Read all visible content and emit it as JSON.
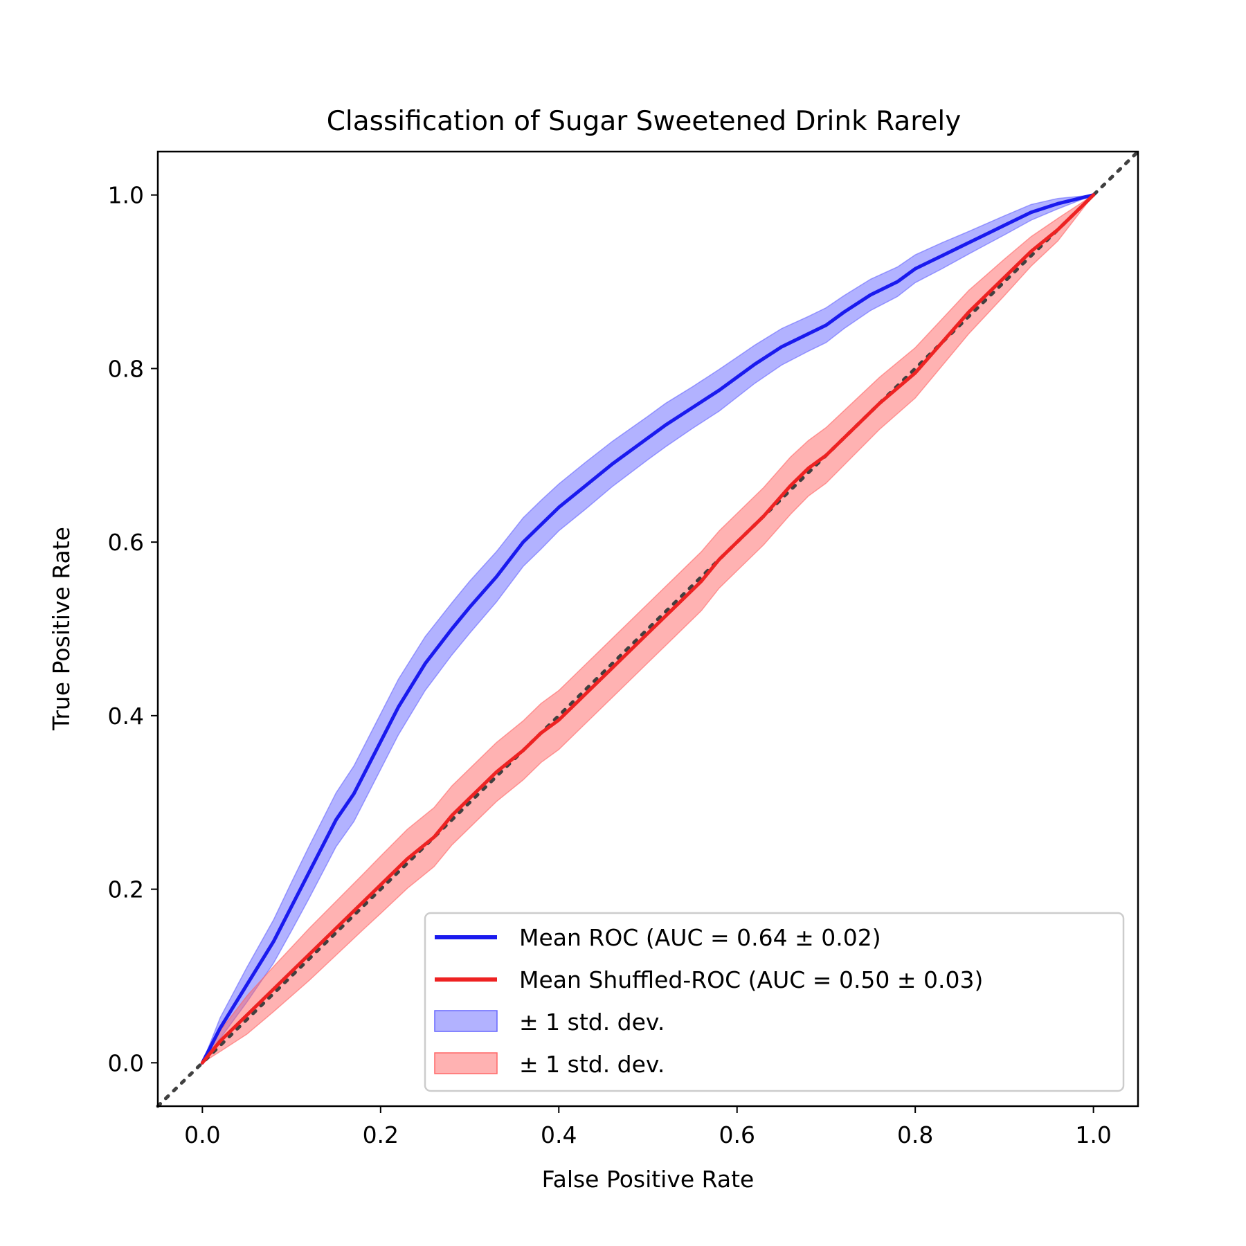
{
  "chart_data": {
    "type": "line",
    "title": "Classification of Sugar Sweetened Drink Rarely",
    "xlabel": "False Positive Rate",
    "ylabel": "True Positive Rate",
    "xlim": [
      -0.05,
      1.05
    ],
    "ylim": [
      -0.05,
      1.05
    ],
    "xticks": [
      "0.0",
      "0.2",
      "0.4",
      "0.6",
      "0.8",
      "1.0"
    ],
    "yticks": [
      "0.0",
      "0.2",
      "0.4",
      "0.6",
      "0.8",
      "1.0"
    ],
    "grid": false,
    "legend_position": "lower right",
    "colors": {
      "blue_line": "#1a1aee",
      "blue_band": "#6666ff",
      "red_line": "#ee2222",
      "red_band": "#ff6666",
      "diagonal": "#404040"
    },
    "reference_line": {
      "style": "dotted",
      "x": [
        -0.05,
        1.05
      ],
      "y": [
        -0.05,
        1.05
      ]
    },
    "series": [
      {
        "name": "Mean ROC (AUC = 0.64 ± 0.02)",
        "x": [
          0.0,
          0.02,
          0.05,
          0.08,
          0.1,
          0.12,
          0.15,
          0.17,
          0.2,
          0.22,
          0.25,
          0.28,
          0.3,
          0.33,
          0.36,
          0.38,
          0.4,
          0.43,
          0.46,
          0.5,
          0.52,
          0.55,
          0.58,
          0.6,
          0.62,
          0.65,
          0.68,
          0.7,
          0.72,
          0.75,
          0.78,
          0.8,
          0.83,
          0.86,
          0.88,
          0.9,
          0.93,
          0.96,
          1.0
        ],
        "y": [
          0.0,
          0.04,
          0.09,
          0.14,
          0.18,
          0.22,
          0.28,
          0.31,
          0.37,
          0.41,
          0.46,
          0.5,
          0.525,
          0.56,
          0.6,
          0.62,
          0.64,
          0.665,
          0.69,
          0.72,
          0.735,
          0.755,
          0.775,
          0.79,
          0.805,
          0.825,
          0.84,
          0.85,
          0.865,
          0.885,
          0.9,
          0.915,
          0.93,
          0.945,
          0.955,
          0.965,
          0.98,
          0.99,
          1.0
        ],
        "std": [
          0.0,
          0.012,
          0.02,
          0.025,
          0.028,
          0.03,
          0.031,
          0.032,
          0.032,
          0.032,
          0.031,
          0.03,
          0.03,
          0.029,
          0.028,
          0.028,
          0.027,
          0.027,
          0.026,
          0.025,
          0.025,
          0.024,
          0.024,
          0.023,
          0.022,
          0.021,
          0.02,
          0.02,
          0.019,
          0.018,
          0.017,
          0.016,
          0.015,
          0.013,
          0.012,
          0.011,
          0.009,
          0.006,
          0.0
        ]
      },
      {
        "name": "Mean Shuffled-ROC (AUC = 0.50 ± 0.03)",
        "x": [
          0.0,
          0.02,
          0.05,
          0.08,
          0.1,
          0.12,
          0.15,
          0.18,
          0.2,
          0.23,
          0.26,
          0.28,
          0.3,
          0.33,
          0.36,
          0.38,
          0.4,
          0.43,
          0.46,
          0.5,
          0.53,
          0.56,
          0.58,
          0.6,
          0.63,
          0.66,
          0.68,
          0.7,
          0.73,
          0.76,
          0.8,
          0.83,
          0.86,
          0.88,
          0.9,
          0.93,
          0.96,
          1.0
        ],
        "y": [
          0.0,
          0.025,
          0.055,
          0.085,
          0.105,
          0.125,
          0.155,
          0.185,
          0.205,
          0.235,
          0.26,
          0.285,
          0.305,
          0.335,
          0.36,
          0.38,
          0.395,
          0.425,
          0.455,
          0.495,
          0.525,
          0.555,
          0.58,
          0.6,
          0.63,
          0.665,
          0.685,
          0.7,
          0.73,
          0.76,
          0.795,
          0.83,
          0.865,
          0.885,
          0.905,
          0.935,
          0.96,
          1.0
        ],
        "std": [
          0.0,
          0.012,
          0.022,
          0.026,
          0.028,
          0.03,
          0.031,
          0.032,
          0.033,
          0.034,
          0.034,
          0.034,
          0.034,
          0.034,
          0.034,
          0.034,
          0.034,
          0.034,
          0.034,
          0.034,
          0.034,
          0.034,
          0.033,
          0.033,
          0.033,
          0.033,
          0.032,
          0.032,
          0.031,
          0.03,
          0.029,
          0.027,
          0.025,
          0.023,
          0.021,
          0.017,
          0.013,
          0.0
        ]
      }
    ],
    "legend": {
      "entries": [
        "Mean ROC (AUC = 0.64 ± 0.02)",
        "Mean Shuffled-ROC (AUC = 0.50 ± 0.03)",
        "± 1 std. dev.",
        "± 1 std. dev."
      ]
    }
  }
}
